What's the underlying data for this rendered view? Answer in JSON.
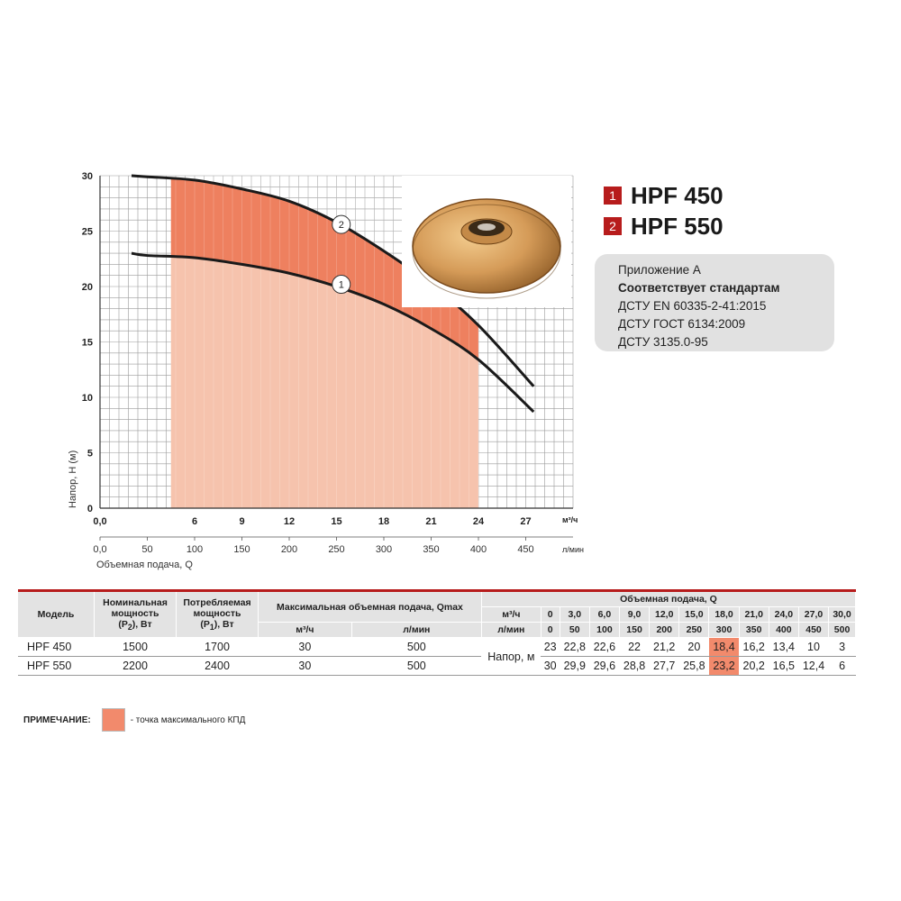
{
  "chart_data": {
    "type": "line",
    "x_unit_primary": "м³/ч",
    "x_unit_secondary": "л/мин",
    "xlabel": "Объемная подача, Q",
    "ylabel": "Напор, Н (м)",
    "x_ticks": [
      "0,0",
      "6",
      "9",
      "12",
      "15",
      "18",
      "21",
      "24",
      "27"
    ],
    "x_tick_values": [
      0,
      6,
      9,
      12,
      15,
      18,
      21,
      24,
      27
    ],
    "x2_ticks": [
      "0,0",
      "50",
      "100",
      "150",
      "200",
      "250",
      "300",
      "350",
      "400",
      "450"
    ],
    "x2_tick_values": [
      0,
      3,
      6,
      9,
      12,
      15,
      18,
      21,
      24,
      27
    ],
    "y_ticks": [
      "0",
      "5",
      "10",
      "15",
      "20",
      "25",
      "30"
    ],
    "y_tick_values": [
      0,
      5,
      10,
      15,
      20,
      25,
      30
    ],
    "xlim": [
      0,
      30
    ],
    "ylim": [
      0,
      30
    ],
    "grid": true,
    "operating_range": [
      4.5,
      24
    ],
    "series": [
      {
        "name": "1",
        "x": [
          2,
          3,
          6,
          9,
          12,
          15,
          18,
          21,
          24,
          27.5
        ],
        "y": [
          23,
          22.8,
          22.6,
          22,
          21.2,
          20,
          18.4,
          16.2,
          13.4,
          8.7
        ]
      },
      {
        "name": "2",
        "x": [
          2,
          3,
          6,
          9,
          12,
          15,
          18,
          21,
          24,
          27.5
        ],
        "y": [
          30,
          29.9,
          29.6,
          28.8,
          27.7,
          25.8,
          23.2,
          20.2,
          16.5,
          11
        ]
      }
    ],
    "curve_label_positions": [
      {
        "label": "1",
        "x": 15.3,
        "y": 20.2
      },
      {
        "label": "2",
        "x": 15.3,
        "y": 25.6
      }
    ]
  },
  "legend": [
    {
      "num": "1",
      "label": "HPF 450"
    },
    {
      "num": "2",
      "label": "HPF 550"
    }
  ],
  "standards": {
    "title": "Приложение А",
    "subtitle": "Соответствует стандартам",
    "lines": [
      "ДСТУ EN 60335-2-41:2015",
      "ДСТУ ГОСТ 6134:2009",
      "ДСТУ 3135.0-95"
    ]
  },
  "table": {
    "h_model": "Модель",
    "h_power_nom": "Номинальная мощность",
    "h_power_nom_sym": "(P",
    "h_power_nom_sub": "2",
    "h_power_nom_unit": "), Вт",
    "h_power_cons": "Потребляемая мощность",
    "h_power_cons_sym": "(P",
    "h_power_cons_sub": "1",
    "h_power_cons_unit": "), Вт",
    "h_qmax": "Максимальная объемная подача, Qmax",
    "h_flow": "Объемная подача, Q",
    "u_m3h": "м³/ч",
    "u_lmin": "л/мин",
    "q_m3h": [
      "0",
      "3,0",
      "6,0",
      "9,0",
      "12,0",
      "15,0",
      "18,0",
      "21,0",
      "24,0",
      "27,0",
      "30,0"
    ],
    "q_lmin": [
      "0",
      "50",
      "100",
      "150",
      "200",
      "250",
      "300",
      "350",
      "400",
      "450",
      "500"
    ],
    "head_label": "Напор, м",
    "rows": [
      {
        "model": "HPF 450",
        "p2": "1500",
        "p1": "1700",
        "qmax_m3h": "30",
        "qmax_lmin": "500",
        "heads": [
          "23",
          "22,8",
          "22,6",
          "22",
          "21,2",
          "20",
          "18,4",
          "16,2",
          "13,4",
          "10",
          "3"
        ],
        "hl": 6
      },
      {
        "model": "HPF 550",
        "p2": "2200",
        "p1": "2400",
        "qmax_m3h": "30",
        "qmax_lmin": "500",
        "heads": [
          "30",
          "29,9",
          "29,6",
          "28,8",
          "27,7",
          "25,8",
          "23,2",
          "20,2",
          "16,5",
          "12,4",
          "6"
        ],
        "hl": 6
      }
    ]
  },
  "note": {
    "label": "ПРИМЕЧАНИЕ:",
    "text": "- точка максимального КПД",
    "color": "#f28a6c"
  },
  "colors": {
    "range_light": "#f6c3ad",
    "range_dark": "#ee805f",
    "accent": "#b71c1c"
  }
}
